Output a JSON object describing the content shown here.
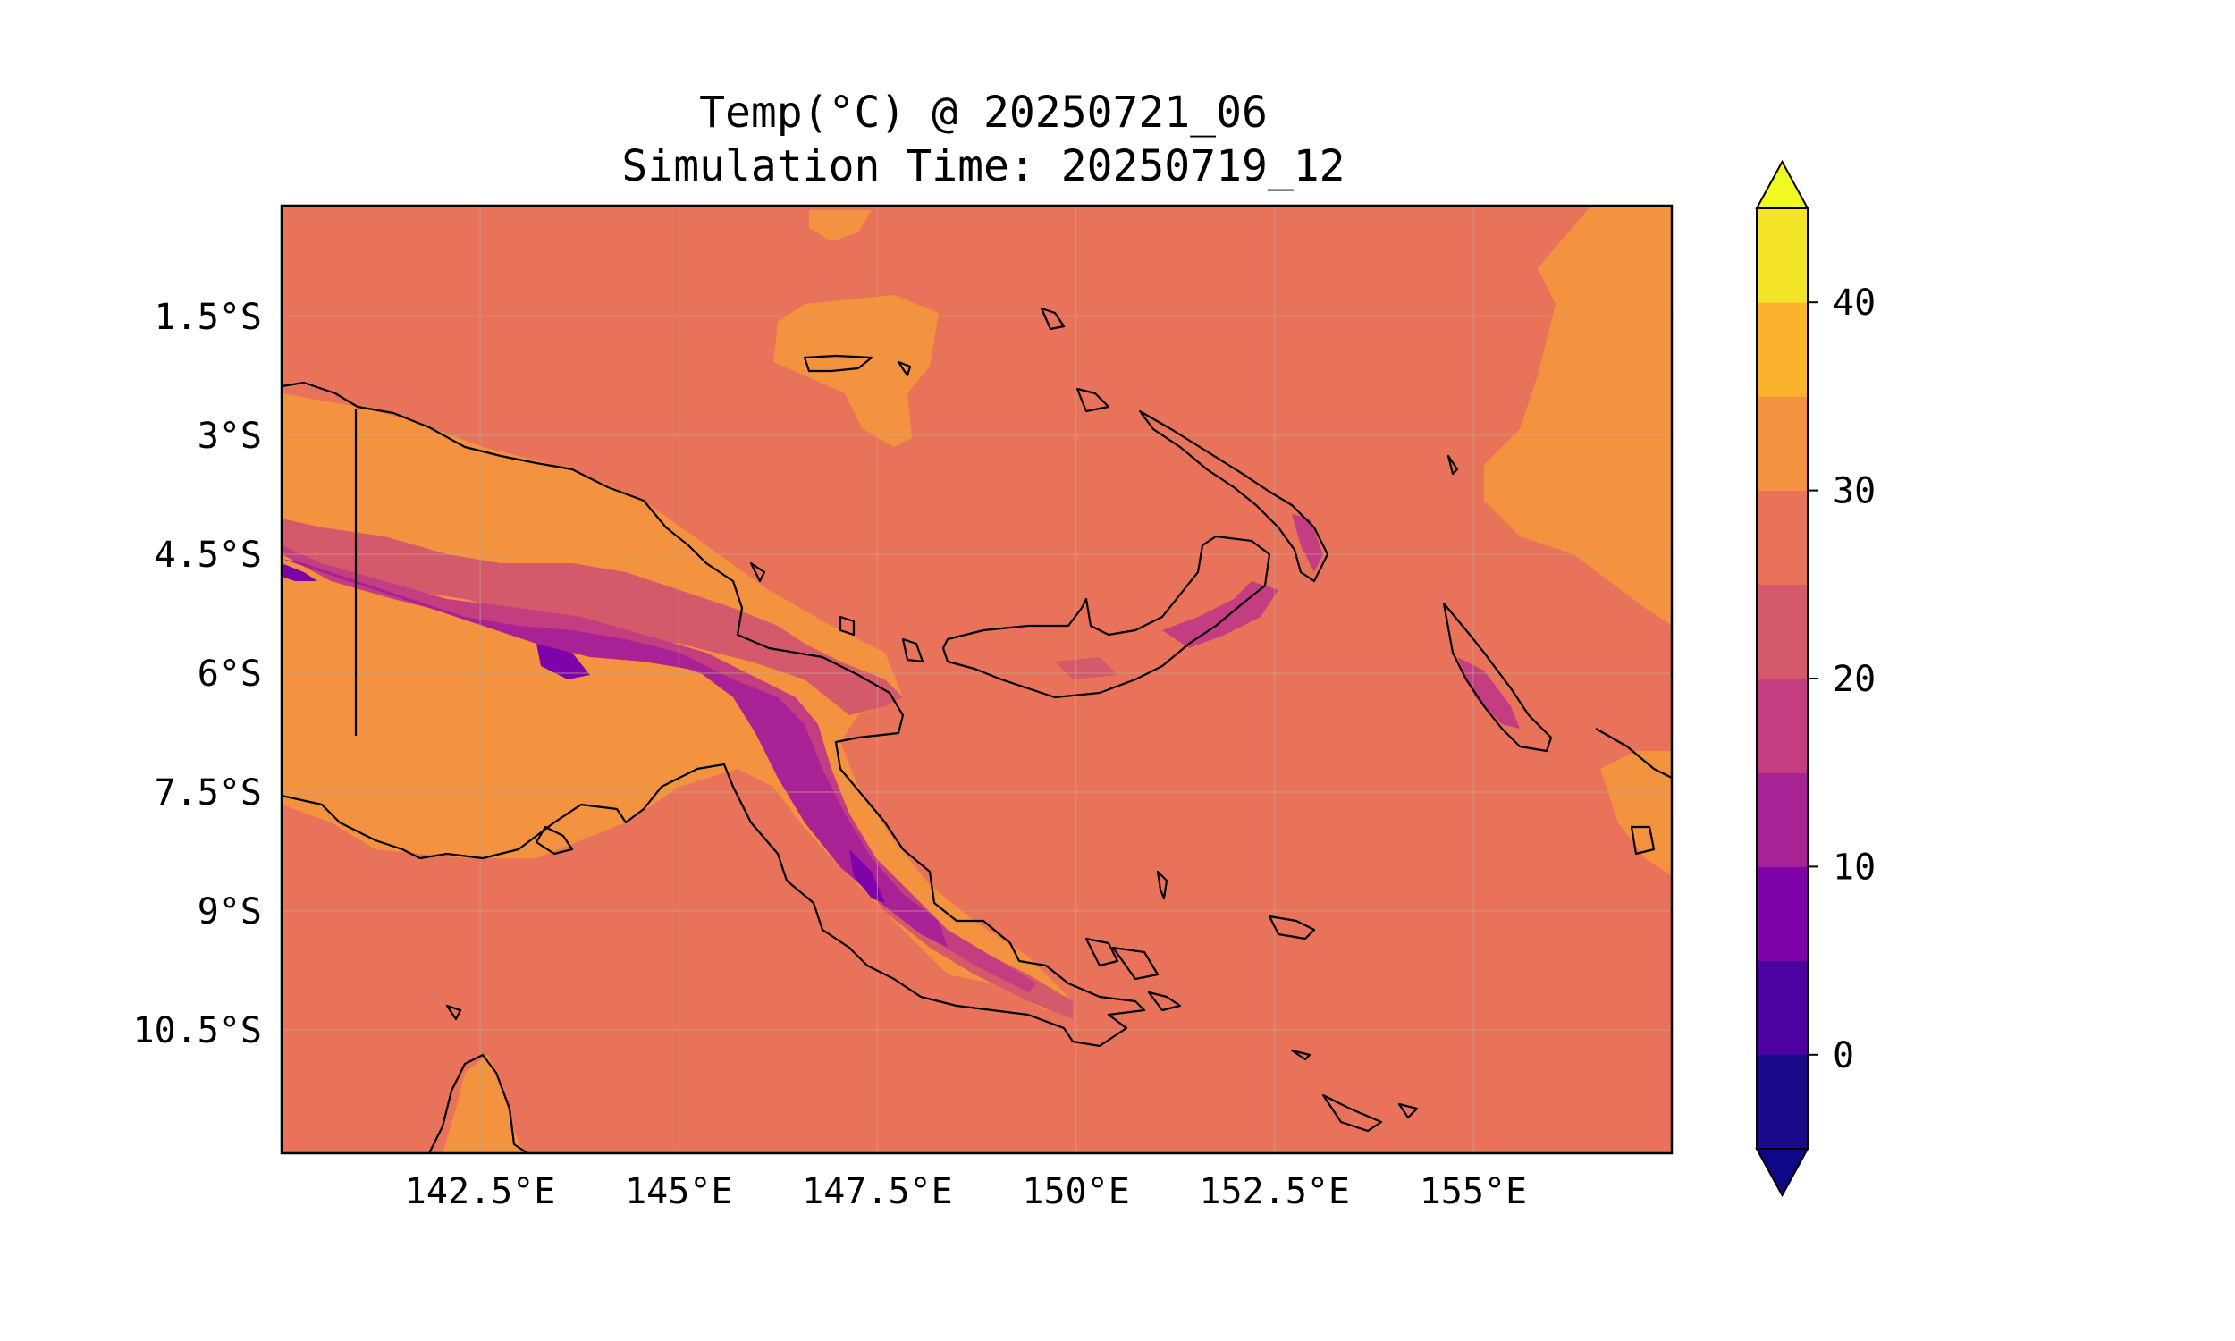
{
  "title_line1": "Temp(°C) @ 20250721_06",
  "title_line2": "Simulation Time: 20250719_12",
  "x_ticks": [
    "142.5°E",
    "145°E",
    "147.5°E",
    "150°E",
    "152.5°E",
    "155°E"
  ],
  "y_ticks": [
    "1.5°S",
    "3°S",
    "4.5°S",
    "6°S",
    "7.5°S",
    "9°S",
    "10.5°S"
  ],
  "colorbar": {
    "ticks": [
      "0",
      "10",
      "20",
      "30",
      "40"
    ],
    "tick_values": [
      0,
      10,
      20,
      30,
      40
    ],
    "range": [
      -5,
      45
    ],
    "levels": [
      -5,
      0,
      5,
      10,
      15,
      20,
      25,
      30,
      35,
      40,
      45
    ],
    "extend": "both",
    "colors": [
      "#1b0a8a",
      "#4c02a1",
      "#7e03a8",
      "#a82296",
      "#c33d80",
      "#d4596b",
      "#e8735a",
      "#f3923f",
      "#fbb32e",
      "#f3e427"
    ],
    "under_color": "#0d0887",
    "over_color": "#f0f921"
  },
  "map": {
    "lon_range": [
      140.0,
      157.5
    ],
    "lat_range": [
      -12.0,
      0.0
    ],
    "background_color": "#e8735a"
  }
}
